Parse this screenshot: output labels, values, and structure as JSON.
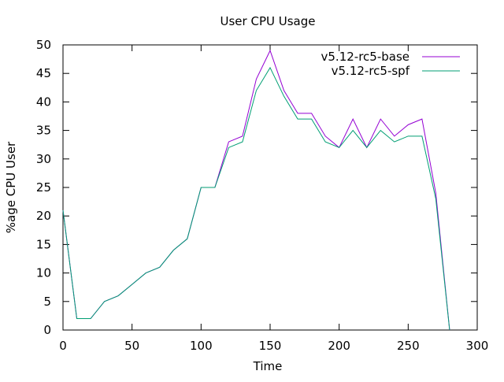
{
  "chart_data": {
    "type": "line",
    "title": "User CPU Usage",
    "xlabel": "Time",
    "ylabel": "%age CPU User",
    "xlim": [
      0,
      300
    ],
    "ylim": [
      0,
      50
    ],
    "xticks": [
      0,
      50,
      100,
      150,
      200,
      250,
      300
    ],
    "yticks": [
      0,
      5,
      10,
      15,
      20,
      25,
      30,
      35,
      40,
      45,
      50
    ],
    "grid": false,
    "legend_position": "top-right",
    "x": [
      0,
      10,
      20,
      30,
      40,
      50,
      60,
      70,
      80,
      90,
      100,
      110,
      120,
      130,
      140,
      150,
      160,
      170,
      180,
      190,
      200,
      210,
      220,
      230,
      240,
      250,
      260,
      270,
      280
    ],
    "series": [
      {
        "name": "v5.12-rc5-base",
        "color": "#9400d3",
        "values": [
          21,
          2,
          2,
          5,
          6,
          8,
          10,
          11,
          14,
          16,
          25,
          25,
          33,
          34,
          44,
          49,
          42,
          38,
          38,
          34,
          32,
          37,
          32,
          37,
          34,
          36,
          37,
          24,
          0
        ]
      },
      {
        "name": "v5.12-rc5-spf",
        "color": "#009e73",
        "values": [
          21,
          2,
          2,
          5,
          6,
          8,
          10,
          11,
          14,
          16,
          25,
          25,
          32,
          33,
          42,
          46,
          41,
          37,
          37,
          33,
          32,
          35,
          32,
          35,
          33,
          34,
          34,
          23,
          0
        ]
      }
    ]
  }
}
